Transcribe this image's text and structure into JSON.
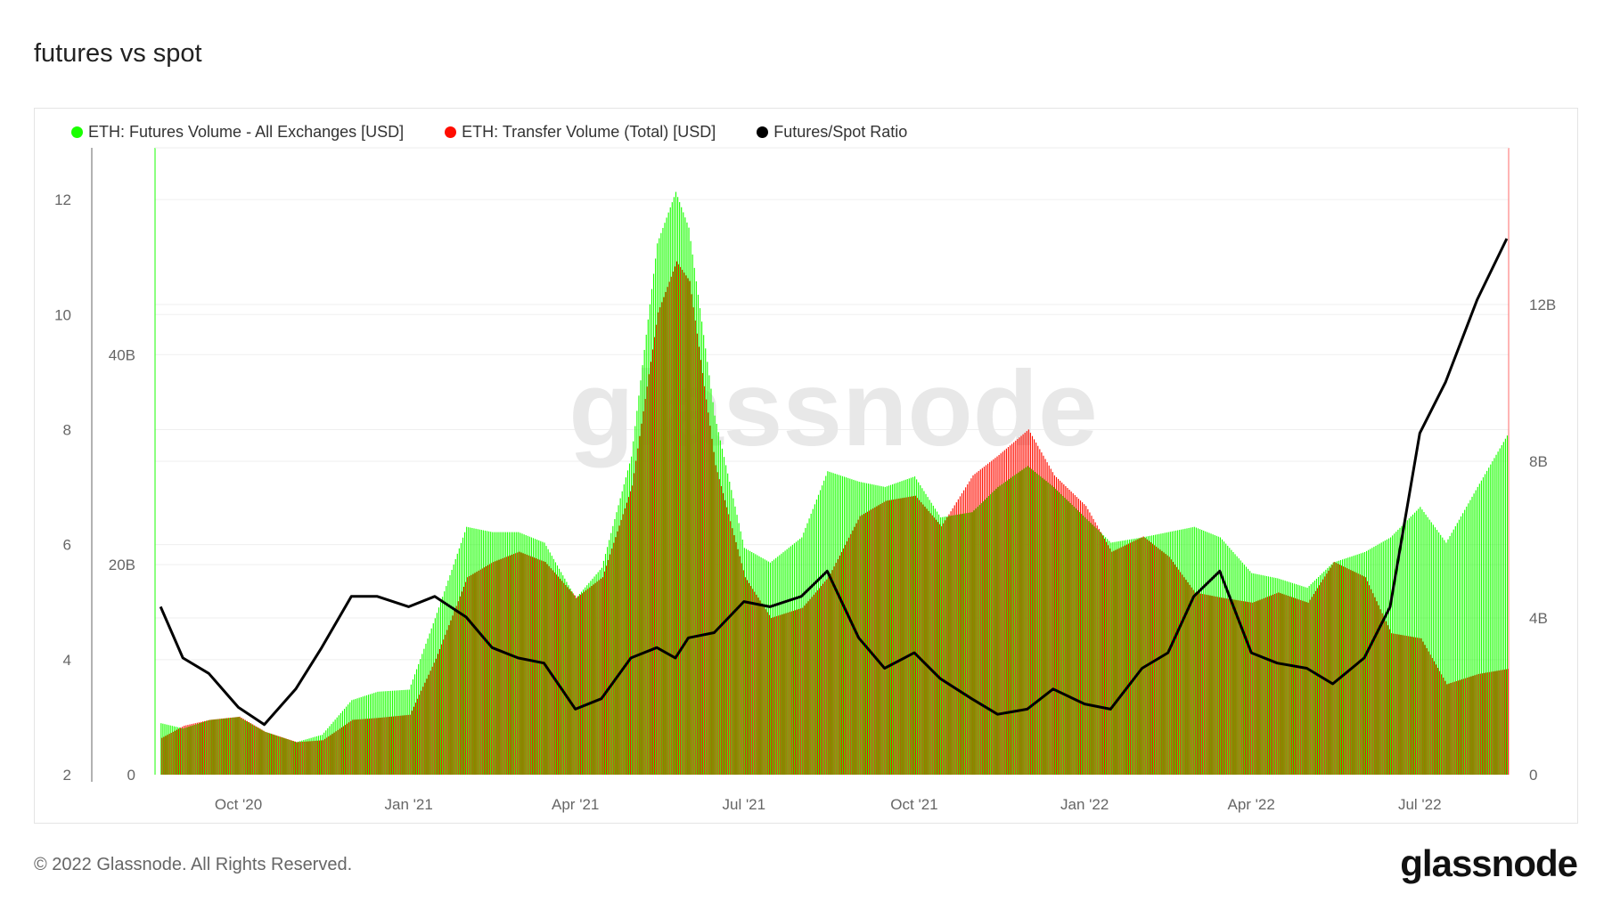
{
  "title": "futures vs spot",
  "footer": "© 2022 Glassnode. All Rights Reserved.",
  "logo": "glassnode",
  "watermark": "glassnode",
  "chart_data": {
    "type": "bar+line",
    "title": "futures vs spot",
    "legend_placement": "top-left",
    "legend": [
      {
        "label": "ETH: Futures Volume - All Exchanges [USD]",
        "color": "#1aff00"
      },
      {
        "label": "ETH: Transfer Volume (Total) [USD]",
        "color": "#ff0d00"
      },
      {
        "label": "Futures/Spot Ratio",
        "color": "#000000"
      }
    ],
    "xlim": [
      "2020-08-17",
      "2022-08-18"
    ],
    "x_ticks": [
      {
        "label": "Oct '20",
        "date": "2020-10-01"
      },
      {
        "label": "Jan '21",
        "date": "2021-01-01"
      },
      {
        "label": "Apr '21",
        "date": "2021-04-01"
      },
      {
        "label": "Jul '21",
        "date": "2021-07-01"
      },
      {
        "label": "Oct '21",
        "date": "2021-10-01"
      },
      {
        "label": "Jan '22",
        "date": "2022-01-01"
      },
      {
        "label": "Apr '22",
        "date": "2022-04-01"
      },
      {
        "label": "Jul '22",
        "date": "2022-07-01"
      }
    ],
    "ratio_axis": {
      "ylim": [
        2,
        12.9
      ],
      "ticks": [
        {
          "v": 2,
          "label": "2"
        },
        {
          "v": 4,
          "label": "4"
        },
        {
          "v": 6,
          "label": "6"
        },
        {
          "v": 8,
          "label": "8"
        },
        {
          "v": 10,
          "label": "10"
        },
        {
          "v": 12,
          "label": "12"
        }
      ]
    },
    "futures_axis": {
      "unit": "B USD",
      "ylim": [
        0,
        59.7
      ],
      "ticks": [
        {
          "v": 0,
          "label": "0"
        },
        {
          "v": 20,
          "label": "20B"
        },
        {
          "v": 40,
          "label": "40B"
        }
      ]
    },
    "transfer_axis": {
      "unit": "B USD",
      "ylim": [
        0,
        16.0
      ],
      "ticks": [
        {
          "v": 0,
          "label": "0"
        },
        {
          "v": 4,
          "label": "4B"
        },
        {
          "v": 8,
          "label": "8B"
        },
        {
          "v": 12,
          "label": "12B"
        }
      ]
    },
    "dates": [
      "2020-08-20",
      "2020-09-01",
      "2020-09-15",
      "2020-10-01",
      "2020-10-15",
      "2020-11-01",
      "2020-11-15",
      "2020-12-01",
      "2020-12-15",
      "2021-01-01",
      "2021-01-15",
      "2021-02-01",
      "2021-02-15",
      "2021-03-01",
      "2021-03-15",
      "2021-04-01",
      "2021-04-15",
      "2021-05-01",
      "2021-05-15",
      "2021-05-25",
      "2021-06-01",
      "2021-06-15",
      "2021-07-01",
      "2021-07-15",
      "2021-08-01",
      "2021-08-15",
      "2021-09-01",
      "2021-09-15",
      "2021-10-01",
      "2021-10-15",
      "2021-11-01",
      "2021-11-15",
      "2021-12-01",
      "2021-12-15",
      "2022-01-01",
      "2022-01-15",
      "2022-02-01",
      "2022-02-15",
      "2022-03-01",
      "2022-03-15",
      "2022-04-01",
      "2022-04-15",
      "2022-05-01",
      "2022-05-15",
      "2022-06-01",
      "2022-06-15",
      "2022-07-01",
      "2022-07-15",
      "2022-08-01",
      "2022-08-17"
    ],
    "series": [
      {
        "name": "ETH: Futures Volume - All Exchanges [USD]",
        "axis": "futures",
        "unit": "B",
        "values": [
          4.9,
          4.4,
          5.2,
          5.5,
          4.1,
          3.1,
          3.8,
          7.1,
          7.9,
          8.1,
          14.9,
          23.6,
          23.1,
          23.1,
          22.1,
          16.8,
          19.7,
          30.3,
          50.6,
          55.5,
          52.1,
          34.2,
          21.6,
          20.2,
          22.6,
          28.9,
          27.9,
          27.4,
          28.4,
          24.5,
          25.0,
          27.4,
          29.4,
          27.4,
          24.5,
          22.1,
          22.6,
          23.1,
          23.6,
          22.6,
          19.2,
          18.7,
          17.8,
          20.2,
          21.2,
          22.6,
          25.5,
          22.1,
          27.4,
          32.3
        ]
      },
      {
        "name": "ETH: Transfer Volume (Total) [USD]",
        "axis": "transfer",
        "unit": "B",
        "values": [
          0.94,
          1.25,
          1.4,
          1.48,
          1.09,
          0.83,
          0.88,
          1.4,
          1.45,
          1.53,
          2.96,
          5.04,
          5.43,
          5.69,
          5.43,
          4.52,
          5.04,
          7.38,
          11.8,
          13.1,
          12.6,
          7.9,
          5.04,
          4.0,
          4.26,
          5.04,
          6.6,
          6.99,
          7.12,
          6.34,
          7.64,
          8.16,
          8.81,
          7.64,
          6.86,
          5.69,
          6.08,
          5.56,
          4.65,
          4.52,
          4.39,
          4.65,
          4.39,
          5.43,
          5.04,
          3.61,
          3.48,
          2.31,
          2.57,
          2.7
        ]
      },
      {
        "name": "Futures/Spot Ratio",
        "axis": "ratio",
        "values": [
          4.92,
          4.03,
          3.76,
          3.17,
          2.87,
          3.49,
          4.21,
          5.1,
          5.1,
          4.92,
          5.1,
          4.74,
          4.21,
          4.03,
          3.94,
          3.14,
          3.32,
          4.03,
          4.21,
          4.03,
          4.38,
          4.47,
          5.01,
          4.92,
          5.1,
          5.54,
          4.38,
          3.85,
          4.12,
          3.67,
          3.32,
          3.05,
          3.14,
          3.49,
          3.23,
          3.14,
          3.85,
          4.12,
          5.1,
          5.54,
          4.12,
          3.94,
          3.85,
          3.58,
          4.03,
          4.92,
          7.94,
          8.83,
          10.26,
          11.32
        ]
      }
    ]
  }
}
